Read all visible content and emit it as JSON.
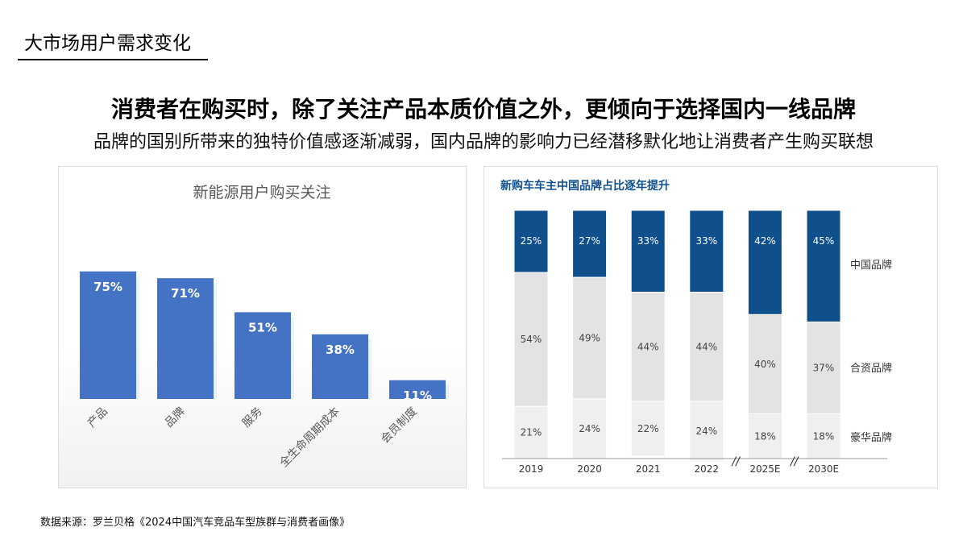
{
  "header": {
    "title": "大市场用户需求变化"
  },
  "headline": "消费者在购买时，除了关注产品本质价值之外，更倾向于选择国内一线品牌",
  "subheadline": "品牌的国别所带来的独特价值感逐渐减弱，国内品牌的影响力已经潜移默化地让消费者产生购买联想",
  "source": "数据来源：罗兰贝格《2024中国汽车竞品车型族群与消费者画像》",
  "colors": {
    "bar_blue": "#4472c4",
    "brand_navy": "#0f4f8c",
    "jv_gray": "#e3e3e3",
    "lux_gray": "#efefef"
  },
  "chart_data": [
    {
      "type": "bar",
      "title": "新能源用户购买关注",
      "categories": [
        "产品",
        "品牌",
        "服务",
        "全生命周期成本",
        "会员制度"
      ],
      "values": [
        75,
        71,
        51,
        38,
        11
      ],
      "data_labels": [
        "75%",
        "71%",
        "51%",
        "38%",
        "11%"
      ],
      "ylim": [
        0,
        100
      ],
      "grid": false,
      "legend": "none"
    },
    {
      "type": "bar",
      "stacked": "percent",
      "title": "新购车车主中国品牌占比逐年提升",
      "categories": [
        "2019",
        "2020",
        "2021",
        "2022",
        "2025E",
        "2030E"
      ],
      "axis_break_before": [
        "2025E",
        "2030E"
      ],
      "axis_break_mark": "//",
      "series": [
        {
          "name": "中国品牌",
          "values": [
            25,
            27,
            33,
            33,
            42,
            45
          ],
          "labels": [
            "25%",
            "27%",
            "33%",
            "33%",
            "42%",
            "45%"
          ]
        },
        {
          "name": "合资品牌",
          "values": [
            54,
            49,
            44,
            44,
            40,
            37
          ],
          "labels": [
            "54%",
            "49%",
            "44%",
            "44%",
            "40%",
            "37%"
          ]
        },
        {
          "name": "豪华品牌",
          "values": [
            21,
            24,
            22,
            24,
            18,
            18
          ],
          "labels": [
            "21%",
            "24%",
            "22%",
            "24%",
            "18%",
            "18%"
          ]
        }
      ],
      "legend": "right"
    }
  ]
}
